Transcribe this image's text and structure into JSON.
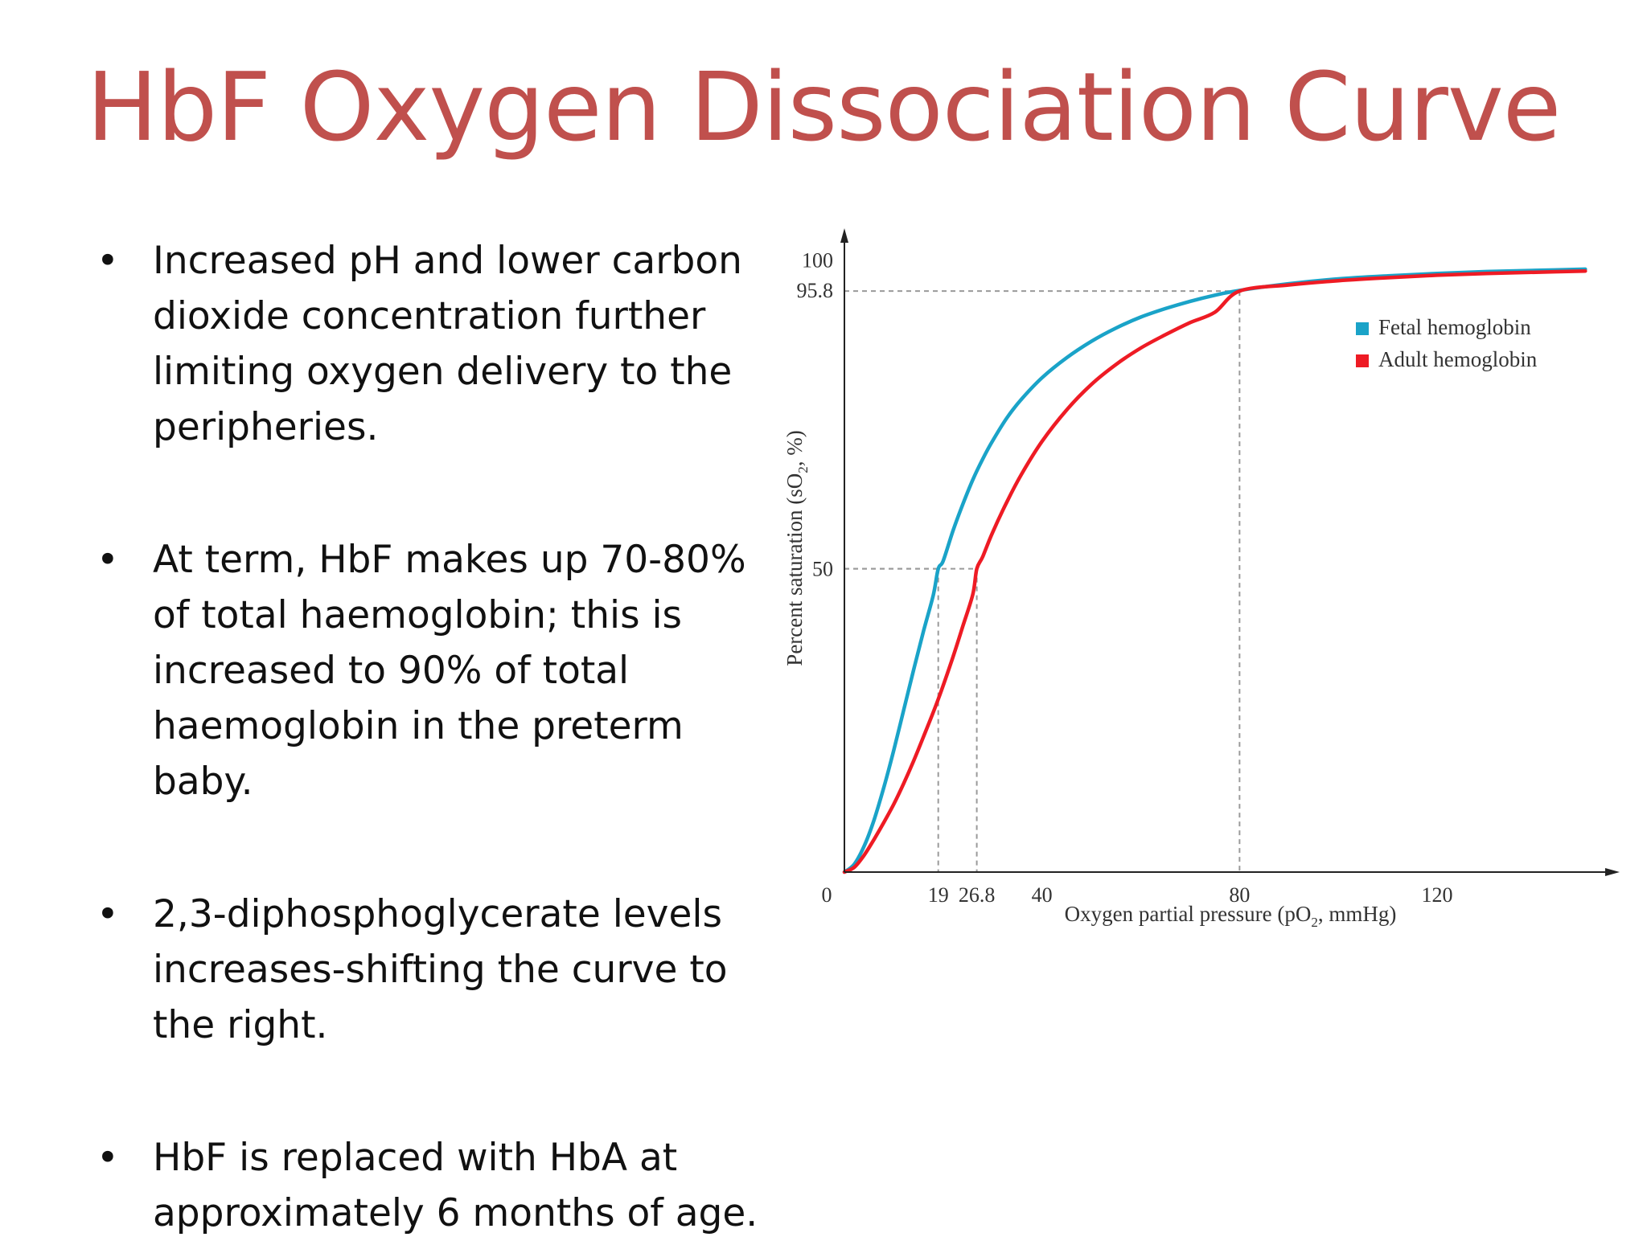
{
  "slide": {
    "title": "HbF Oxygen Dissociation Curve",
    "bullets": [
      "Increased pH and lower carbon dioxide concentration further limiting oxygen delivery to the peripheries.",
      "At term, HbF makes up 70-80% of total haemoglobin; this is increased to 90% of total haemoglobin in the preterm baby.",
      "2,3-diphosphoglycerate levels increases-shifting the curve to the right.",
      "HbF is replaced with HbA at approximately 6 months of age."
    ]
  },
  "chart_data": {
    "type": "line",
    "xlabel_main": "Oxygen partial pressure (pO",
    "xlabel_sub": "2",
    "xlabel_end": ", mmHg)",
    "ylabel_main": "Percent saturation (sO",
    "ylabel_sub": "2",
    "ylabel_end": ", %)",
    "xlim": [
      0,
      155
    ],
    "ylim": [
      0,
      108
    ],
    "x_ticks": [
      {
        "value": 0,
        "label": "0"
      },
      {
        "value": 19,
        "label": "19"
      },
      {
        "value": 26.8,
        "label": "26.8"
      },
      {
        "value": 40,
        "label": "40"
      },
      {
        "value": 80,
        "label": "80"
      },
      {
        "value": 120,
        "label": "120"
      }
    ],
    "y_ticks": [
      {
        "value": 100,
        "label": "100"
      },
      {
        "value": 95.8,
        "label": "95.8"
      },
      {
        "value": 50,
        "label": "50"
      }
    ],
    "reference_lines": [
      {
        "x": 19,
        "y": 50
      },
      {
        "x": 26.8,
        "y": 50
      },
      {
        "x": 80,
        "y": 95.8
      }
    ],
    "series": [
      {
        "name": "Fetal hemoglobin",
        "color": "#1aa3c8",
        "x": [
          0,
          2,
          4,
          6,
          8,
          10,
          12,
          14,
          16,
          18,
          19,
          20,
          22,
          24,
          26,
          28,
          30,
          33,
          36,
          40,
          45,
          50,
          55,
          60,
          65,
          70,
          75,
          80,
          90,
          100,
          110,
          120,
          130,
          140,
          150
        ],
        "y": [
          0,
          1.3,
          4.3,
          8.6,
          14.0,
          20.1,
          26.7,
          33.3,
          39.7,
          45.7,
          50.0,
          51.3,
          56.3,
          60.7,
          64.7,
          68.1,
          71.1,
          75.0,
          78.1,
          81.5,
          84.8,
          87.5,
          89.7,
          91.5,
          92.9,
          94.1,
          95.1,
          95.9,
          97.0,
          97.8,
          98.3,
          98.7,
          99.0,
          99.2,
          99.4
        ]
      },
      {
        "name": "Adult hemoglobin",
        "color": "#ee1b24",
        "x": [
          0,
          2,
          4,
          6,
          8,
          10,
          12,
          14,
          16,
          19,
          22,
          24,
          26,
          26.8,
          28,
          30,
          33,
          36,
          40,
          45,
          50,
          55,
          60,
          65,
          70,
          75,
          80,
          90,
          100,
          110,
          120,
          130,
          140,
          150
        ],
        "y": [
          0,
          0.8,
          2.8,
          5.4,
          8.2,
          11.2,
          14.6,
          18.3,
          22.3,
          28.5,
          35.5,
          40.6,
          45.8,
          50.0,
          52.0,
          56.0,
          61.2,
          65.8,
          71.0,
          76.2,
          80.4,
          83.7,
          86.4,
          88.6,
          90.6,
          92.3,
          95.8,
          96.8,
          97.5,
          98.0,
          98.4,
          98.7,
          98.9,
          99.1
        ]
      }
    ],
    "legend_position": "top-right",
    "grid": false
  }
}
